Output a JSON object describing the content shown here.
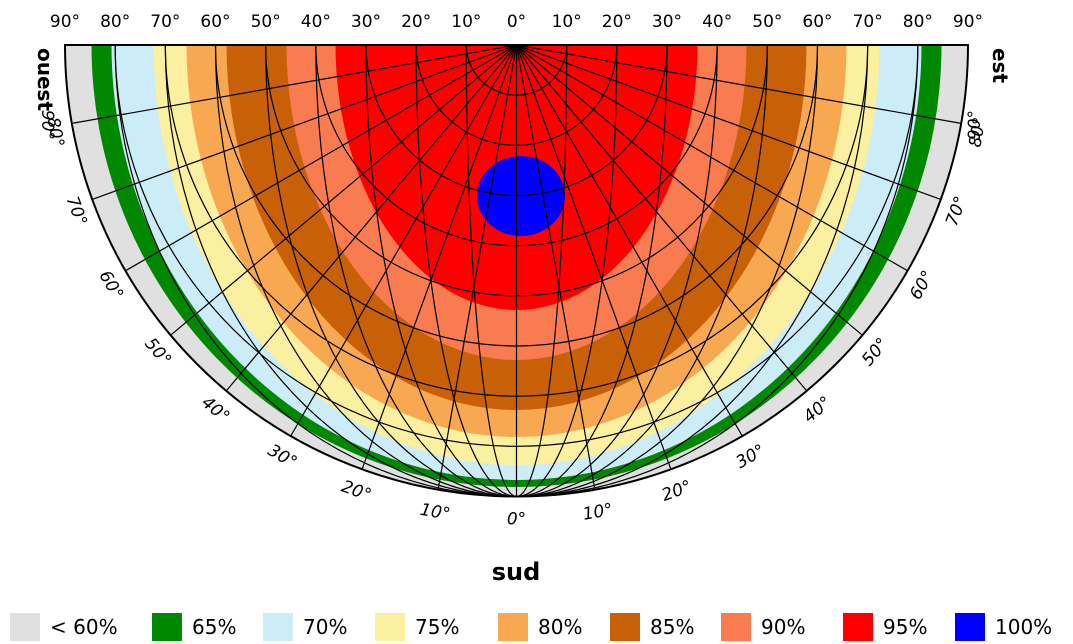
{
  "chart_data": {
    "type": "heatmap",
    "projection": "half-polar",
    "labels": {
      "west": "ouest",
      "east": "est",
      "south": "sud"
    },
    "top_ticks": [
      "90°",
      "80°",
      "70°",
      "60°",
      "50°",
      "40°",
      "30°",
      "20°",
      "10°",
      "0°",
      "10°",
      "20°",
      "30°",
      "40°",
      "50°",
      "60°",
      "70°",
      "80°",
      "90°"
    ],
    "arc_ticks": [
      "90°",
      "80°",
      "70°",
      "60°",
      "50°",
      "40°",
      "30°",
      "20°",
      "10°",
      "0°",
      "10°",
      "20°",
      "30°",
      "40°",
      "50°",
      "60°",
      "70°",
      "80°",
      "90°"
    ],
    "zones": [
      {
        "label": "< 60%",
        "color": "#e0e0e0"
      },
      {
        "label": "65%",
        "color": "#008800"
      },
      {
        "label": "70%",
        "color": "#ccecf8"
      },
      {
        "label": "75%",
        "color": "#fbf0a0"
      },
      {
        "label": "80%",
        "color": "#f8a850"
      },
      {
        "label": "85%",
        "color": "#c86008"
      },
      {
        "label": "90%",
        "color": "#f87c50"
      },
      {
        "label": "95%",
        "color": "#ff0000"
      },
      {
        "label": "100%",
        "color": "#0000ff"
      }
    ],
    "legend_position": "bottom",
    "grid": true
  }
}
